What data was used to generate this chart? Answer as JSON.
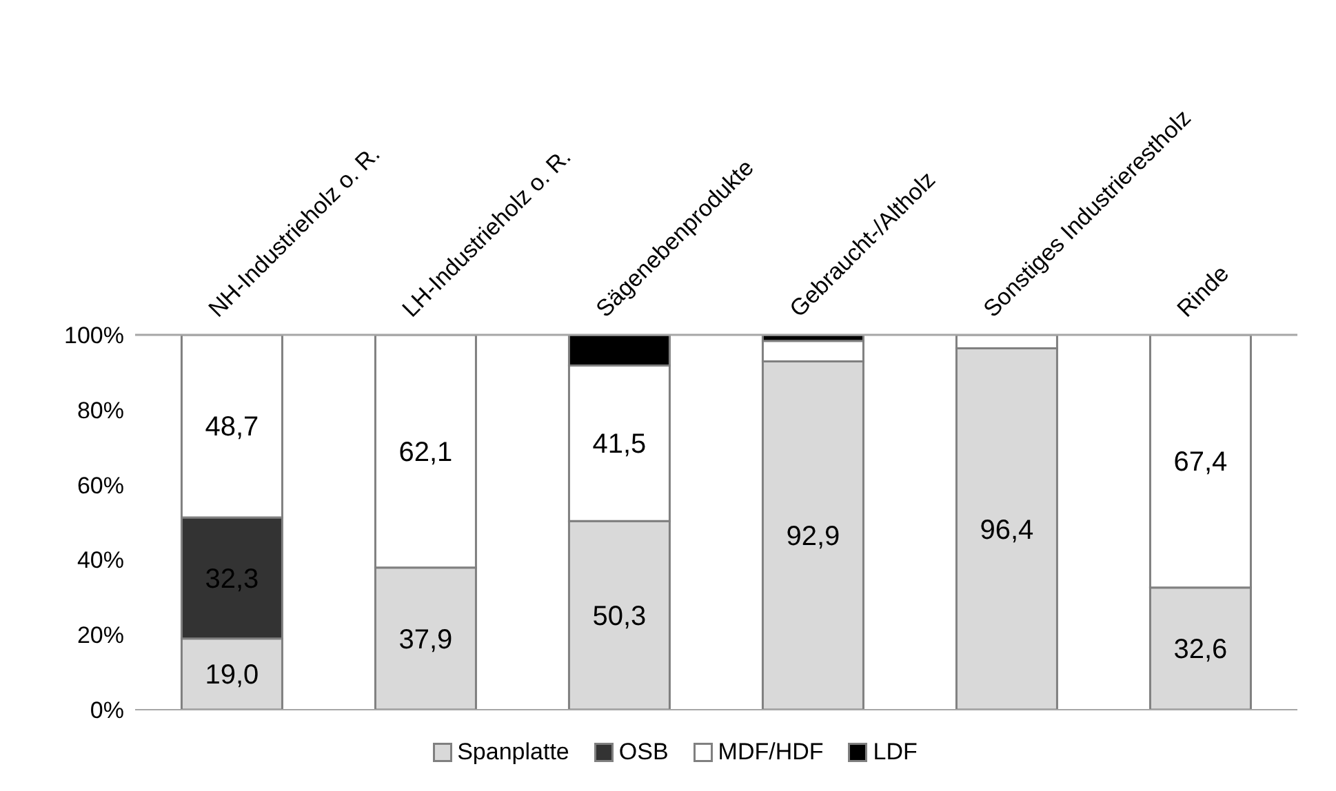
{
  "chart_data": {
    "type": "bar",
    "stacked": true,
    "categories": [
      "NH-Industrieholz o. R.",
      "LH-Industrieholz o. R.",
      "Sägenebenprodukte",
      "Gebraucht-/Altholz",
      "Sonstiges Industrierestholz",
      "Rinde"
    ],
    "series": [
      {
        "name": "Spanplatte",
        "color": "#d9d9d9",
        "values": [
          19.0,
          37.9,
          50.3,
          92.9,
          96.4,
          32.6
        ],
        "value_labels": [
          "19,0",
          "37,9",
          "50,3",
          "92,9",
          "96,4",
          "32,6"
        ]
      },
      {
        "name": "OSB",
        "color": "#333333",
        "values": [
          32.3,
          0,
          0,
          0,
          0,
          0
        ],
        "value_labels": [
          "32,3",
          null,
          null,
          null,
          null,
          null
        ]
      },
      {
        "name": "MDF/HDF",
        "color": "#ffffff",
        "values": [
          48.7,
          62.1,
          41.5,
          5.5,
          3.6,
          67.4
        ],
        "value_labels": [
          "48,7",
          "62,1",
          "41,5",
          null,
          null,
          "67,4"
        ]
      },
      {
        "name": "LDF",
        "color": "#000000",
        "values": [
          0,
          0,
          8.2,
          1.6,
          0,
          0
        ],
        "value_labels": [
          null,
          null,
          null,
          null,
          null,
          null
        ]
      }
    ],
    "ylim": [
      0,
      100
    ],
    "yticks": [
      {
        "value": 0,
        "label": "0%"
      },
      {
        "value": 20,
        "label": "20%"
      },
      {
        "value": 40,
        "label": "40%"
      },
      {
        "value": 60,
        "label": "60%"
      },
      {
        "value": 80,
        "label": "80%"
      },
      {
        "value": 100,
        "label": "100%"
      }
    ],
    "grid": false,
    "legend": "bottom"
  }
}
